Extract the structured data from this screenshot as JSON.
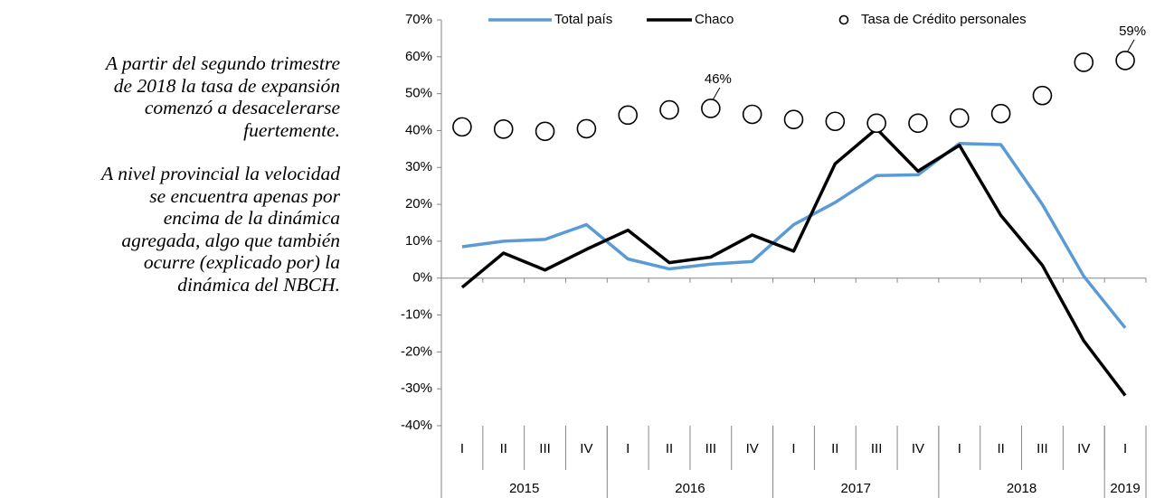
{
  "text": {
    "paragraphs": [
      [
        "A partir del segundo trimestre",
        "de 2018 la tasa de expansión",
        "comenzó a desacelerarse",
        "fuertemente."
      ],
      [
        "A nivel provincial la velocidad",
        "se encuentra apenas por",
        "encima de la dinámica",
        "agregada, algo que también",
        "ocurre (explicado por) la",
        "dinámica del NBCH."
      ]
    ]
  },
  "chart_data": {
    "type": "line",
    "categories": [
      "I",
      "II",
      "III",
      "IV",
      "I",
      "II",
      "III",
      "IV",
      "I",
      "II",
      "III",
      "IV",
      "I",
      "II",
      "III",
      "IV",
      "I"
    ],
    "category_groups": [
      {
        "label": "2015",
        "count": 4
      },
      {
        "label": "2016",
        "count": 4
      },
      {
        "label": "2017",
        "count": 4
      },
      {
        "label": "2018",
        "count": 4
      },
      {
        "label": "2019",
        "count": 1
      }
    ],
    "series": [
      {
        "name": "Total país",
        "color": "#5b9bd5",
        "style": "line",
        "values": [
          8.5,
          10,
          10.5,
          14.5,
          5.2,
          2.5,
          3.8,
          4.5,
          14.5,
          20.5,
          27.8,
          28,
          36.5,
          36.2,
          20,
          0.5,
          -13.5
        ]
      },
      {
        "name": "Chaco",
        "color": "#000000",
        "style": "line",
        "values": [
          -2.5,
          6.8,
          2.2,
          7.8,
          13,
          4.2,
          5.7,
          11.7,
          7.3,
          31,
          40.5,
          29,
          36,
          17,
          3.5,
          -17,
          -31.8
        ]
      },
      {
        "name": "Tasa de Crédito personales",
        "color": "#000000",
        "style": "marker",
        "values": [
          41,
          40.4,
          39.8,
          40.5,
          44.2,
          45.6,
          46,
          44.4,
          43,
          42.5,
          42,
          42,
          43.4,
          44.6,
          49.5,
          58.5,
          59
        ],
        "value_labels": [
          null,
          null,
          null,
          null,
          null,
          null,
          "46%",
          null,
          null,
          null,
          null,
          null,
          null,
          null,
          null,
          null,
          "59%"
        ]
      }
    ],
    "ylim": [
      -40,
      70
    ],
    "yticks": [
      {
        "value": -40,
        "label": "-40%"
      },
      {
        "value": -30,
        "label": "-30%"
      },
      {
        "value": -20,
        "label": "-20%"
      },
      {
        "value": -10,
        "label": "-10%"
      },
      {
        "value": 0,
        "label": "0%"
      },
      {
        "value": 10,
        "label": "10%"
      },
      {
        "value": 20,
        "label": "20%"
      },
      {
        "value": 30,
        "label": "30%"
      },
      {
        "value": 40,
        "label": "40%"
      },
      {
        "value": 50,
        "label": "50%"
      },
      {
        "value": 60,
        "label": "60%"
      },
      {
        "value": 70,
        "label": "70%"
      }
    ],
    "legend": "top"
  }
}
